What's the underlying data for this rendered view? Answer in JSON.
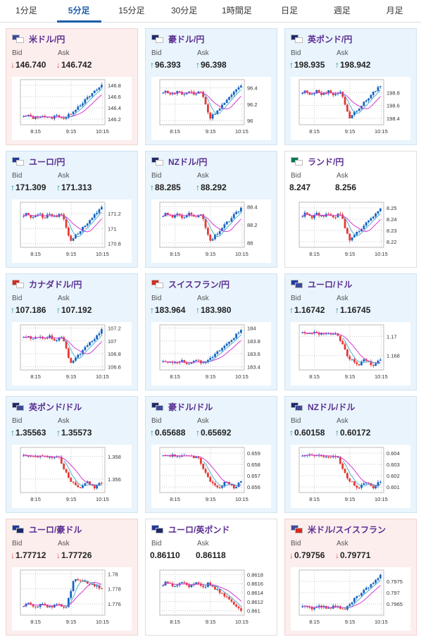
{
  "tabs": [
    {
      "label": "1分足",
      "active": false
    },
    {
      "label": "5分足",
      "active": true
    },
    {
      "label": "15分足",
      "active": false
    },
    {
      "label": "30分足",
      "active": false
    },
    {
      "label": "1時間足",
      "active": false
    },
    {
      "label": "日足",
      "active": false
    },
    {
      "label": "週足",
      "active": false
    },
    {
      "label": "月足",
      "active": false
    }
  ],
  "labels": {
    "bid": "Bid",
    "ask": "Ask"
  },
  "colors": {
    "up_candle": "#1565c0",
    "down_candle": "#e53935",
    "ma": "#d23bd2",
    "ma2": "#2a9fc9",
    "up_arrow": "#1a8a8a",
    "down_arrow": "#d9534f"
  },
  "pairs": [
    {
      "name": "米ドル/円",
      "trend": "down",
      "bid": "146.740",
      "ask": "146.742",
      "flags": [
        "#3c4a9c",
        "#ffffff"
      ],
      "chart_data": {
        "type": "candlestick",
        "x_ticks": [
          "8:15",
          "9:15",
          "10:15"
        ],
        "y_ticks": [
          "146.8",
          "146.6",
          "146.4",
          "146.2"
        ],
        "ylim": [
          146.1,
          146.9
        ],
        "shape": "rise_late",
        "ma": "rise"
      }
    },
    {
      "name": "豪ドル/円",
      "trend": "up",
      "bid": "96.393",
      "ask": "96.398",
      "flags": [
        "#1d2a6b",
        "#ffffff"
      ],
      "chart_data": {
        "type": "candlestick",
        "x_ticks": [
          "8:15",
          "9:15",
          "10:15"
        ],
        "y_ticks": [
          "96.4",
          "96.2",
          "96"
        ],
        "ylim": [
          95.95,
          96.5
        ],
        "shape": "dip_recover",
        "ma": "flat"
      }
    },
    {
      "name": "英ポンド/円",
      "trend": "up",
      "bid": "198.935",
      "ask": "198.942",
      "flags": [
        "#1d2a6b",
        "#ffffff"
      ],
      "chart_data": {
        "type": "candlestick",
        "x_ticks": [
          "8:15",
          "9:15",
          "10:15"
        ],
        "y_ticks": [
          "198.8",
          "198.6",
          "198.4"
        ],
        "ylim": [
          198.3,
          199.0
        ],
        "shape": "dip_recover",
        "ma": "flat"
      }
    },
    {
      "name": "ユーロ/円",
      "trend": "up",
      "bid": "171.309",
      "ask": "171.313",
      "flags": [
        "#1e3a9e",
        "#ffffff"
      ],
      "chart_data": {
        "type": "candlestick",
        "x_ticks": [
          "8:15",
          "9:15",
          "10:15"
        ],
        "y_ticks": [
          "171.2",
          "171",
          "170.8"
        ],
        "ylim": [
          170.75,
          171.35
        ],
        "shape": "dip_recover",
        "ma": "flat"
      }
    },
    {
      "name": "NZドル/円",
      "trend": "up",
      "bid": "88.285",
      "ask": "88.292",
      "flags": [
        "#1d2a6b",
        "#ffffff"
      ],
      "chart_data": {
        "type": "candlestick",
        "x_ticks": [
          "8:15",
          "9:15",
          "10:15"
        ],
        "y_ticks": [
          "88.4",
          "88.2",
          "88"
        ],
        "ylim": [
          87.95,
          88.45
        ],
        "shape": "dip_recover",
        "ma": "flat"
      }
    },
    {
      "name": "ランド/円",
      "trend": "neutral",
      "bid": "8.247",
      "ask": "8.256",
      "flags": [
        "#007a4d",
        "#ffffff"
      ],
      "chart_data": {
        "type": "candlestick",
        "x_ticks": [
          "8:15",
          "9:15",
          "10:15"
        ],
        "y_ticks": [
          "8.25",
          "8.24",
          "8.23",
          "8.22"
        ],
        "ylim": [
          8.215,
          8.255
        ],
        "shape": "dip_recover",
        "ma": "flat"
      }
    },
    {
      "name": "カナダドル/円",
      "trend": "up",
      "bid": "107.186",
      "ask": "107.192",
      "flags": [
        "#d52b1e",
        "#ffffff"
      ],
      "chart_data": {
        "type": "candlestick",
        "x_ticks": [
          "8:15",
          "9:15",
          "10:15"
        ],
        "y_ticks": [
          "107.2",
          "107",
          "106.8",
          "106.6"
        ],
        "ylim": [
          106.55,
          107.25
        ],
        "shape": "dip_recover",
        "ma": "flat"
      }
    },
    {
      "name": "スイスフラン/円",
      "trend": "up",
      "bid": "183.964",
      "ask": "183.980",
      "flags": [
        "#d52b1e",
        "#ffffff"
      ],
      "chart_data": {
        "type": "candlestick",
        "x_ticks": [
          "8:15",
          "9:15",
          "10:15"
        ],
        "y_ticks": [
          "184",
          "183.8",
          "183.6",
          "183.4"
        ],
        "ylim": [
          183.35,
          184.05
        ],
        "shape": "rise_late",
        "ma": "rise"
      }
    },
    {
      "name": "ユーロ/ドル",
      "trend": "up",
      "bid": "1.16742",
      "ask": "1.16745",
      "flags": [
        "#1e3a9e",
        "#3c4a9c"
      ],
      "chart_data": {
        "type": "candlestick",
        "x_ticks": [
          "8:15",
          "9:15",
          "10:15"
        ],
        "y_ticks": [
          "1.17",
          "1.168"
        ],
        "ylim": [
          1.1665,
          1.1712
        ],
        "shape": "fall",
        "ma": "fall"
      }
    },
    {
      "name": "英ポンド/ドル",
      "trend": "up",
      "bid": "1.35563",
      "ask": "1.35573",
      "flags": [
        "#1d2a6b",
        "#3c4a9c"
      ],
      "chart_data": {
        "type": "candlestick",
        "x_ticks": [
          "8:15",
          "9:15",
          "10:15"
        ],
        "y_ticks": [
          "1.358",
          "1.356"
        ],
        "ylim": [
          1.3548,
          1.3588
        ],
        "shape": "fall",
        "ma": "fall"
      }
    },
    {
      "name": "豪ドル/ドル",
      "trend": "up",
      "bid": "0.65688",
      "ask": "0.65692",
      "flags": [
        "#1d2a6b",
        "#3c4a9c"
      ],
      "chart_data": {
        "type": "candlestick",
        "x_ticks": [
          "8:15",
          "9:15",
          "10:15"
        ],
        "y_ticks": [
          "0.659",
          "0.658",
          "0.657",
          "0.656"
        ],
        "ylim": [
          0.6555,
          0.6595
        ],
        "shape": "fall",
        "ma": "fall"
      }
    },
    {
      "name": "NZドル/ドル",
      "trend": "up",
      "bid": "0.60158",
      "ask": "0.60172",
      "flags": [
        "#1d2a6b",
        "#3c4a9c"
      ],
      "chart_data": {
        "type": "candlestick",
        "x_ticks": [
          "8:15",
          "9:15",
          "10:15"
        ],
        "y_ticks": [
          "0.604",
          "0.603",
          "0.602",
          "0.601"
        ],
        "ylim": [
          0.6005,
          0.6045
        ],
        "shape": "fall",
        "ma": "fall"
      }
    },
    {
      "name": "ユーロ/豪ドル",
      "trend": "down",
      "bid": "1.77712",
      "ask": "1.77726",
      "flags": [
        "#1e3a9e",
        "#1d2a6b"
      ],
      "chart_data": {
        "type": "candlestick",
        "x_ticks": [
          "8:15",
          "9:15",
          "10:15"
        ],
        "y_ticks": [
          "1.78",
          "1.778",
          "1.776"
        ],
        "ylim": [
          1.7745,
          1.7805
        ],
        "shape": "spike",
        "ma": "rise"
      }
    },
    {
      "name": "ユーロ/英ポンド",
      "trend": "neutral",
      "bid": "0.86110",
      "ask": "0.86118",
      "flags": [
        "#1e3a9e",
        "#1d2a6b"
      ],
      "chart_data": {
        "type": "candlestick",
        "x_ticks": [
          "8:15",
          "9:15",
          "10:15"
        ],
        "y_ticks": [
          "0.8618",
          "0.8616",
          "0.8614",
          "0.8612",
          "0.861"
        ],
        "ylim": [
          0.8609,
          0.8619
        ],
        "shape": "fall_late",
        "ma": "fall"
      }
    },
    {
      "name": "米ドル/スイスフラン",
      "trend": "down",
      "bid": "0.79756",
      "ask": "0.79771",
      "flags": [
        "#3c4a9c",
        "#d52b1e"
      ],
      "chart_data": {
        "type": "candlestick",
        "x_ticks": [
          "8:15",
          "9:15",
          "10:15"
        ],
        "y_ticks": [
          "0.7975",
          "0.797",
          "0.7965"
        ],
        "ylim": [
          0.796,
          0.798
        ],
        "shape": "rise_late",
        "ma": "rise"
      }
    }
  ]
}
